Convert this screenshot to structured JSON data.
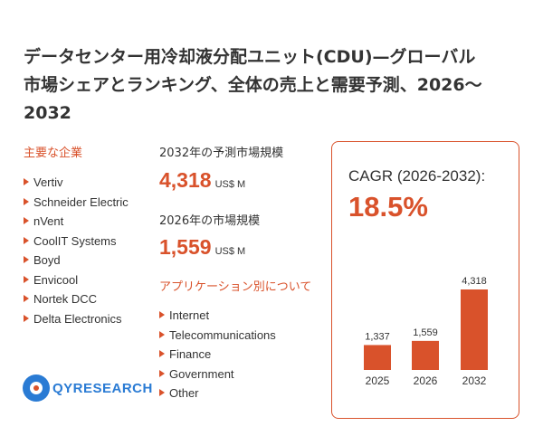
{
  "title": {
    "line1": "データセンター用冷却液分配ユニット(CDU)—グローバル",
    "line2": "市場シェアとランキング、全体の売上と需要予測、2026～",
    "line3": "2032"
  },
  "companies": {
    "heading": "主要な企業",
    "items": [
      "Vertiv",
      "Schneider Electric",
      "nVent",
      "CoolIT Systems",
      "Boyd",
      "Envicool",
      "Nortek DCC",
      "Delta Electronics"
    ]
  },
  "forecast": {
    "label": "2032年の予測市場規模",
    "value": "4,318",
    "unit": "US$ M"
  },
  "current": {
    "label": "2026年の市場規模",
    "value": "1,559",
    "unit": "US$ M"
  },
  "applications": {
    "heading": "アプリケーション別について",
    "items": [
      "Internet",
      "Telecommunications",
      "Finance",
      "Government",
      "Other"
    ]
  },
  "cagr": {
    "label": "CAGR (2026-2032):",
    "value": "18.5%"
  },
  "logo": {
    "text": "QYRESEARCH"
  },
  "colors": {
    "accent": "#d9522b",
    "brand_blue": "#2a7bd4"
  },
  "chart_data": {
    "type": "bar",
    "categories": [
      "2025",
      "2026",
      "2032"
    ],
    "values": [
      1337,
      1559,
      4318
    ],
    "value_labels": [
      "1,337",
      "1,559",
      "4,318"
    ],
    "title": "",
    "xlabel": "",
    "ylabel": "",
    "unit": "US$ M",
    "grid": false,
    "legend": "none"
  }
}
